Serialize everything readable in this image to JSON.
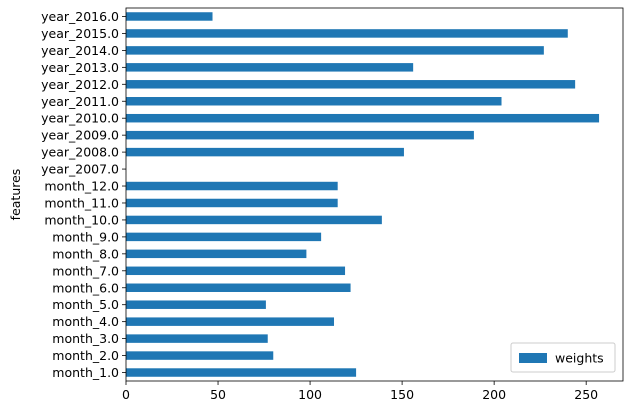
{
  "chart_data": {
    "type": "bar",
    "orientation": "horizontal",
    "title": "",
    "xlabel": "",
    "ylabel": "features",
    "xlim": [
      0,
      270
    ],
    "xticks": [
      0,
      50,
      100,
      150,
      200,
      250
    ],
    "grid": false,
    "legend_position": "lower-right",
    "bar_color": "#1f77b4",
    "categories": [
      "month_1.0",
      "month_2.0",
      "month_3.0",
      "month_4.0",
      "month_5.0",
      "month_6.0",
      "month_7.0",
      "month_8.0",
      "month_9.0",
      "month_10.0",
      "month_11.0",
      "month_12.0",
      "year_2007.0",
      "year_2008.0",
      "year_2009.0",
      "year_2010.0",
      "year_2011.0",
      "year_2012.0",
      "year_2013.0",
      "year_2014.0",
      "year_2015.0",
      "year_2016.0"
    ],
    "series": [
      {
        "name": "weights",
        "values": [
          125,
          80,
          77,
          113,
          76,
          122,
          119,
          98,
          106,
          139,
          115,
          115,
          0,
          151,
          189,
          257,
          204,
          244,
          156,
          227,
          240,
          47
        ]
      }
    ]
  }
}
